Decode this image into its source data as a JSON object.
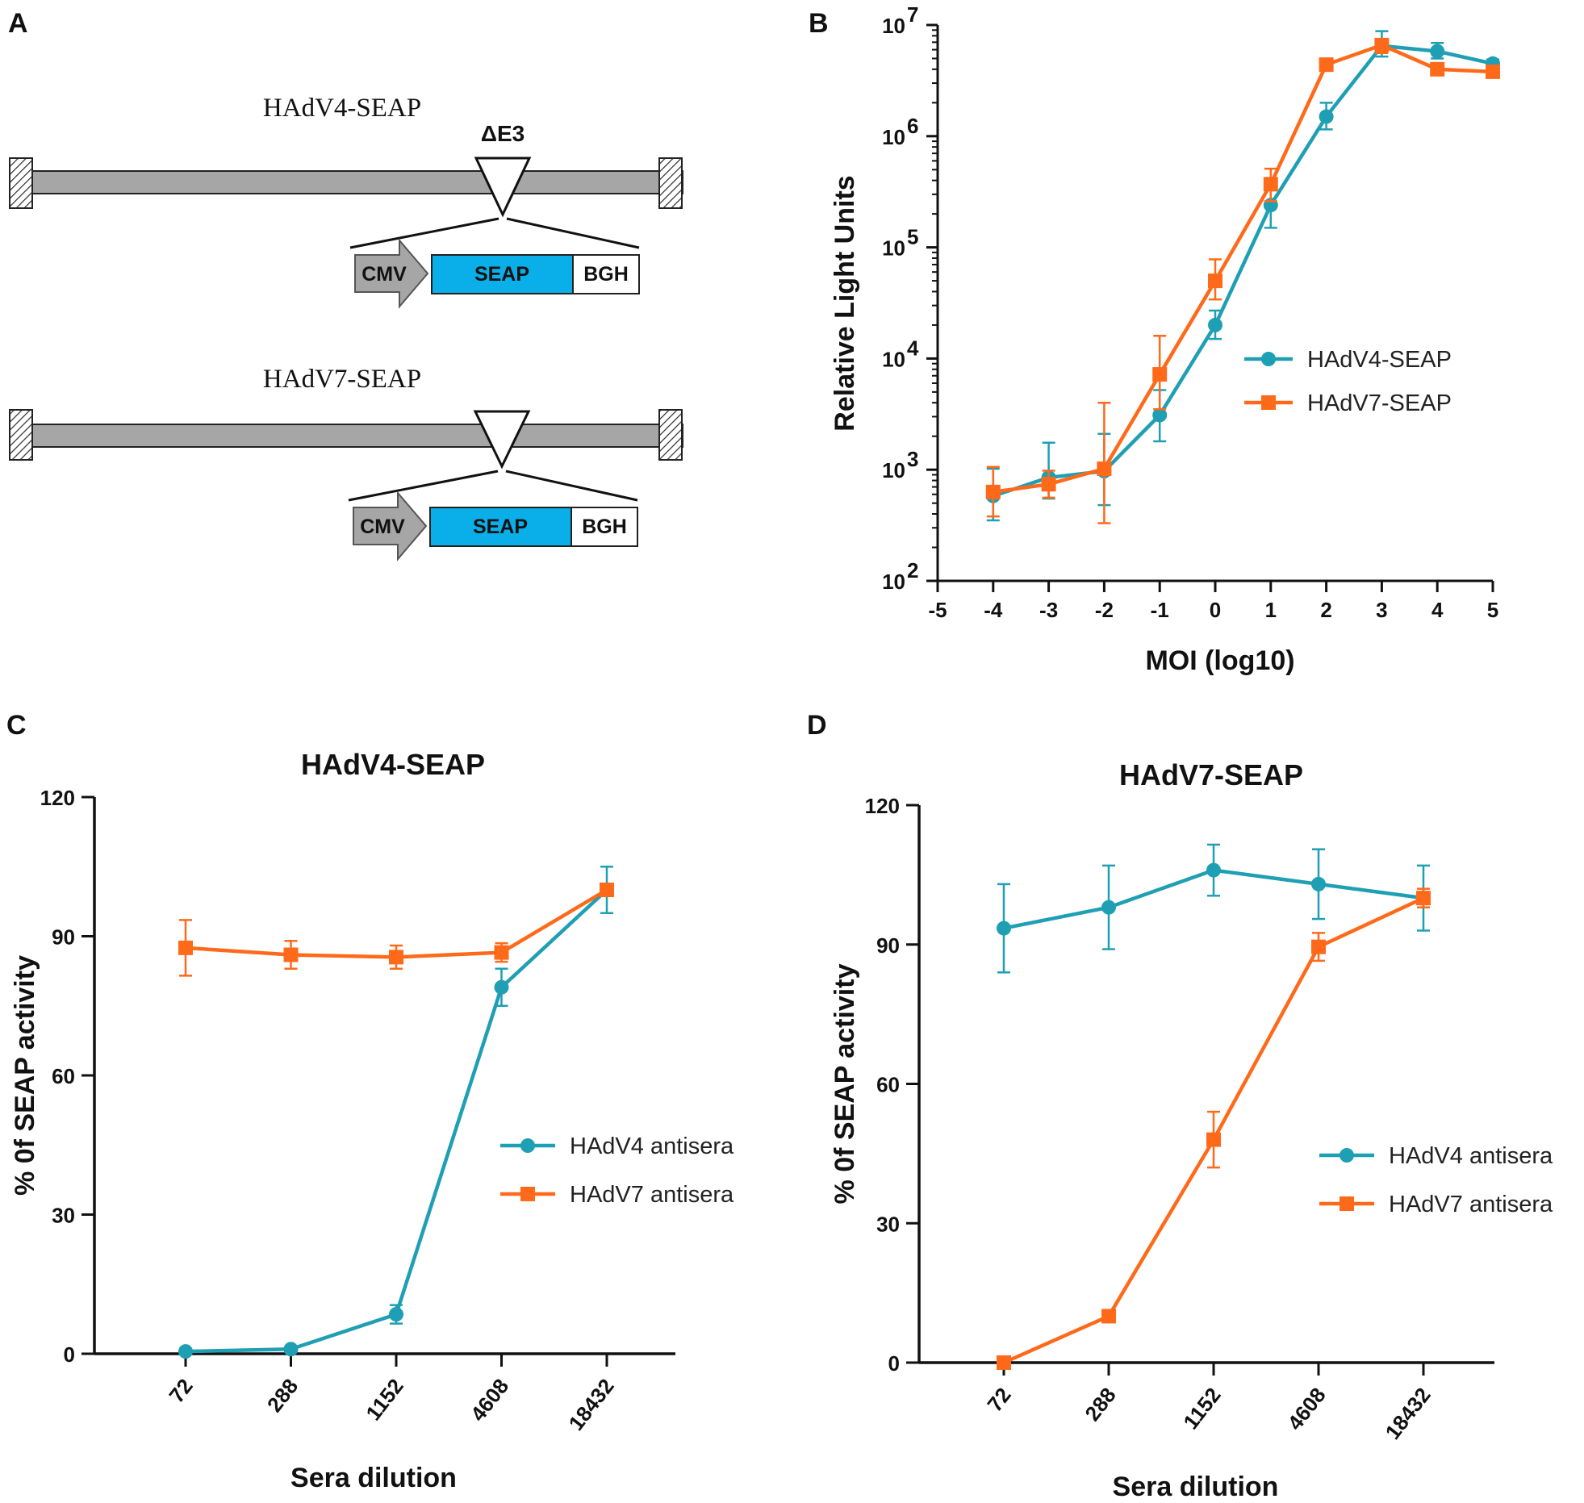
{
  "panels": {
    "a_label": "A",
    "b_label": "B",
    "c_label": "C",
    "d_label": "D"
  },
  "diagram": {
    "constructs": [
      {
        "name": "HAdV4-SEAP",
        "deletion_label": "ΔE3"
      },
      {
        "name": "HAdV7-SEAP",
        "deletion_label": ""
      }
    ],
    "cassette": [
      {
        "label": "CMV",
        "color": "#a6a6a6",
        "shape": "arrow"
      },
      {
        "label": "SEAP",
        "color": "#0aaee8",
        "shape": "box"
      },
      {
        "label": "BGH",
        "color": "#ffffff",
        "shape": "box"
      }
    ],
    "backbone_color": "#a6a6a6"
  },
  "colors": {
    "teal": "#1f9fb4",
    "orange": "#ff6a1a",
    "axis": "#111111"
  },
  "chart_data": [
    {
      "id": "B",
      "type": "line",
      "title": "",
      "xlabel": "MOI (log10)",
      "ylabel": "Relative Light Units",
      "yscale": "log",
      "xlim": [
        -5,
        5
      ],
      "ylim": [
        100,
        10000000
      ],
      "xticks": [
        "-5",
        "-4",
        "-3",
        "-2",
        "-1",
        "0",
        "1",
        "2",
        "3",
        "4",
        "5"
      ],
      "yticks": [
        {
          "base": "10",
          "exp": "2"
        },
        {
          "base": "10",
          "exp": "3"
        },
        {
          "base": "10",
          "exp": "4"
        },
        {
          "base": "10",
          "exp": "5"
        },
        {
          "base": "10",
          "exp": "6"
        },
        {
          "base": "10",
          "exp": "7"
        }
      ],
      "legend_position": "center-right",
      "series": [
        {
          "name": "HAdV4-SEAP",
          "color": "#1f9fb4",
          "marker": "circle",
          "x": [
            -4,
            -3,
            -2,
            -1,
            0,
            1,
            2,
            3,
            4,
            5
          ],
          "y": [
            580,
            850,
            970,
            3100,
            20000,
            240000,
            1500000,
            6500000,
            5800000,
            4500000
          ],
          "err_low": [
            350,
            550,
            480,
            1800,
            15000,
            150000,
            1150000,
            5200000,
            5000000,
            4100000
          ],
          "err_high": [
            1020,
            1750,
            2100,
            5200,
            27000,
            330000,
            2000000,
            8800000,
            6900000,
            4900000
          ]
        },
        {
          "name": "HAdV7-SEAP",
          "color": "#ff6a1a",
          "marker": "square",
          "x": [
            -4,
            -3,
            -2,
            -1,
            0,
            1,
            2,
            3,
            4,
            5
          ],
          "y": [
            630,
            740,
            1020,
            7200,
            50000,
            370000,
            4400000,
            6600000,
            4000000,
            3800000
          ],
          "err_low": [
            380,
            560,
            330,
            3500,
            34000,
            260000,
            4100000,
            5600000,
            3700000,
            3500000
          ],
          "err_high": [
            1060,
            980,
            4000,
            16000,
            78000,
            510000,
            4700000,
            7400000,
            4300000,
            4100000
          ]
        }
      ]
    },
    {
      "id": "C",
      "type": "line",
      "title": "HAdV4-SEAP",
      "xlabel": "Sera dilution",
      "ylabel": "% 0f SEAP activity",
      "categories": [
        "72",
        "288",
        "1152",
        "4608",
        "18432"
      ],
      "ylim": [
        0,
        120
      ],
      "yticks": [
        0,
        30,
        60,
        90,
        120
      ],
      "legend_position": "center-right",
      "series": [
        {
          "name": "HAdV4 antisera",
          "color": "#1f9fb4",
          "marker": "circle",
          "values": [
            0.5,
            1,
            8.5,
            79,
            100
          ],
          "errors": [
            0.5,
            0.5,
            2,
            4,
            5
          ]
        },
        {
          "name": "HAdV7 antisera",
          "color": "#ff6a1a",
          "marker": "square",
          "values": [
            87.5,
            86,
            85.5,
            86.5,
            100
          ],
          "errors": [
            6,
            3,
            2.5,
            2,
            1
          ]
        }
      ]
    },
    {
      "id": "D",
      "type": "line",
      "title": "HAdV7-SEAP",
      "xlabel": "Sera dilution",
      "ylabel": "% 0f SEAP activity",
      "categories": [
        "72",
        "288",
        "1152",
        "4608",
        "18432"
      ],
      "ylim": [
        0,
        120
      ],
      "yticks": [
        0,
        30,
        60,
        90,
        120
      ],
      "legend_position": "center-right",
      "series": [
        {
          "name": "HAdV4 antisera",
          "color": "#1f9fb4",
          "marker": "circle",
          "values": [
            93.5,
            98,
            106,
            103,
            100
          ],
          "errors": [
            9.5,
            9,
            5.5,
            7.5,
            7
          ]
        },
        {
          "name": "HAdV7 antisera",
          "color": "#ff6a1a",
          "marker": "square",
          "values": [
            0,
            10,
            48,
            89.5,
            100
          ],
          "errors": [
            0,
            0,
            6,
            3,
            2
          ]
        }
      ]
    }
  ]
}
